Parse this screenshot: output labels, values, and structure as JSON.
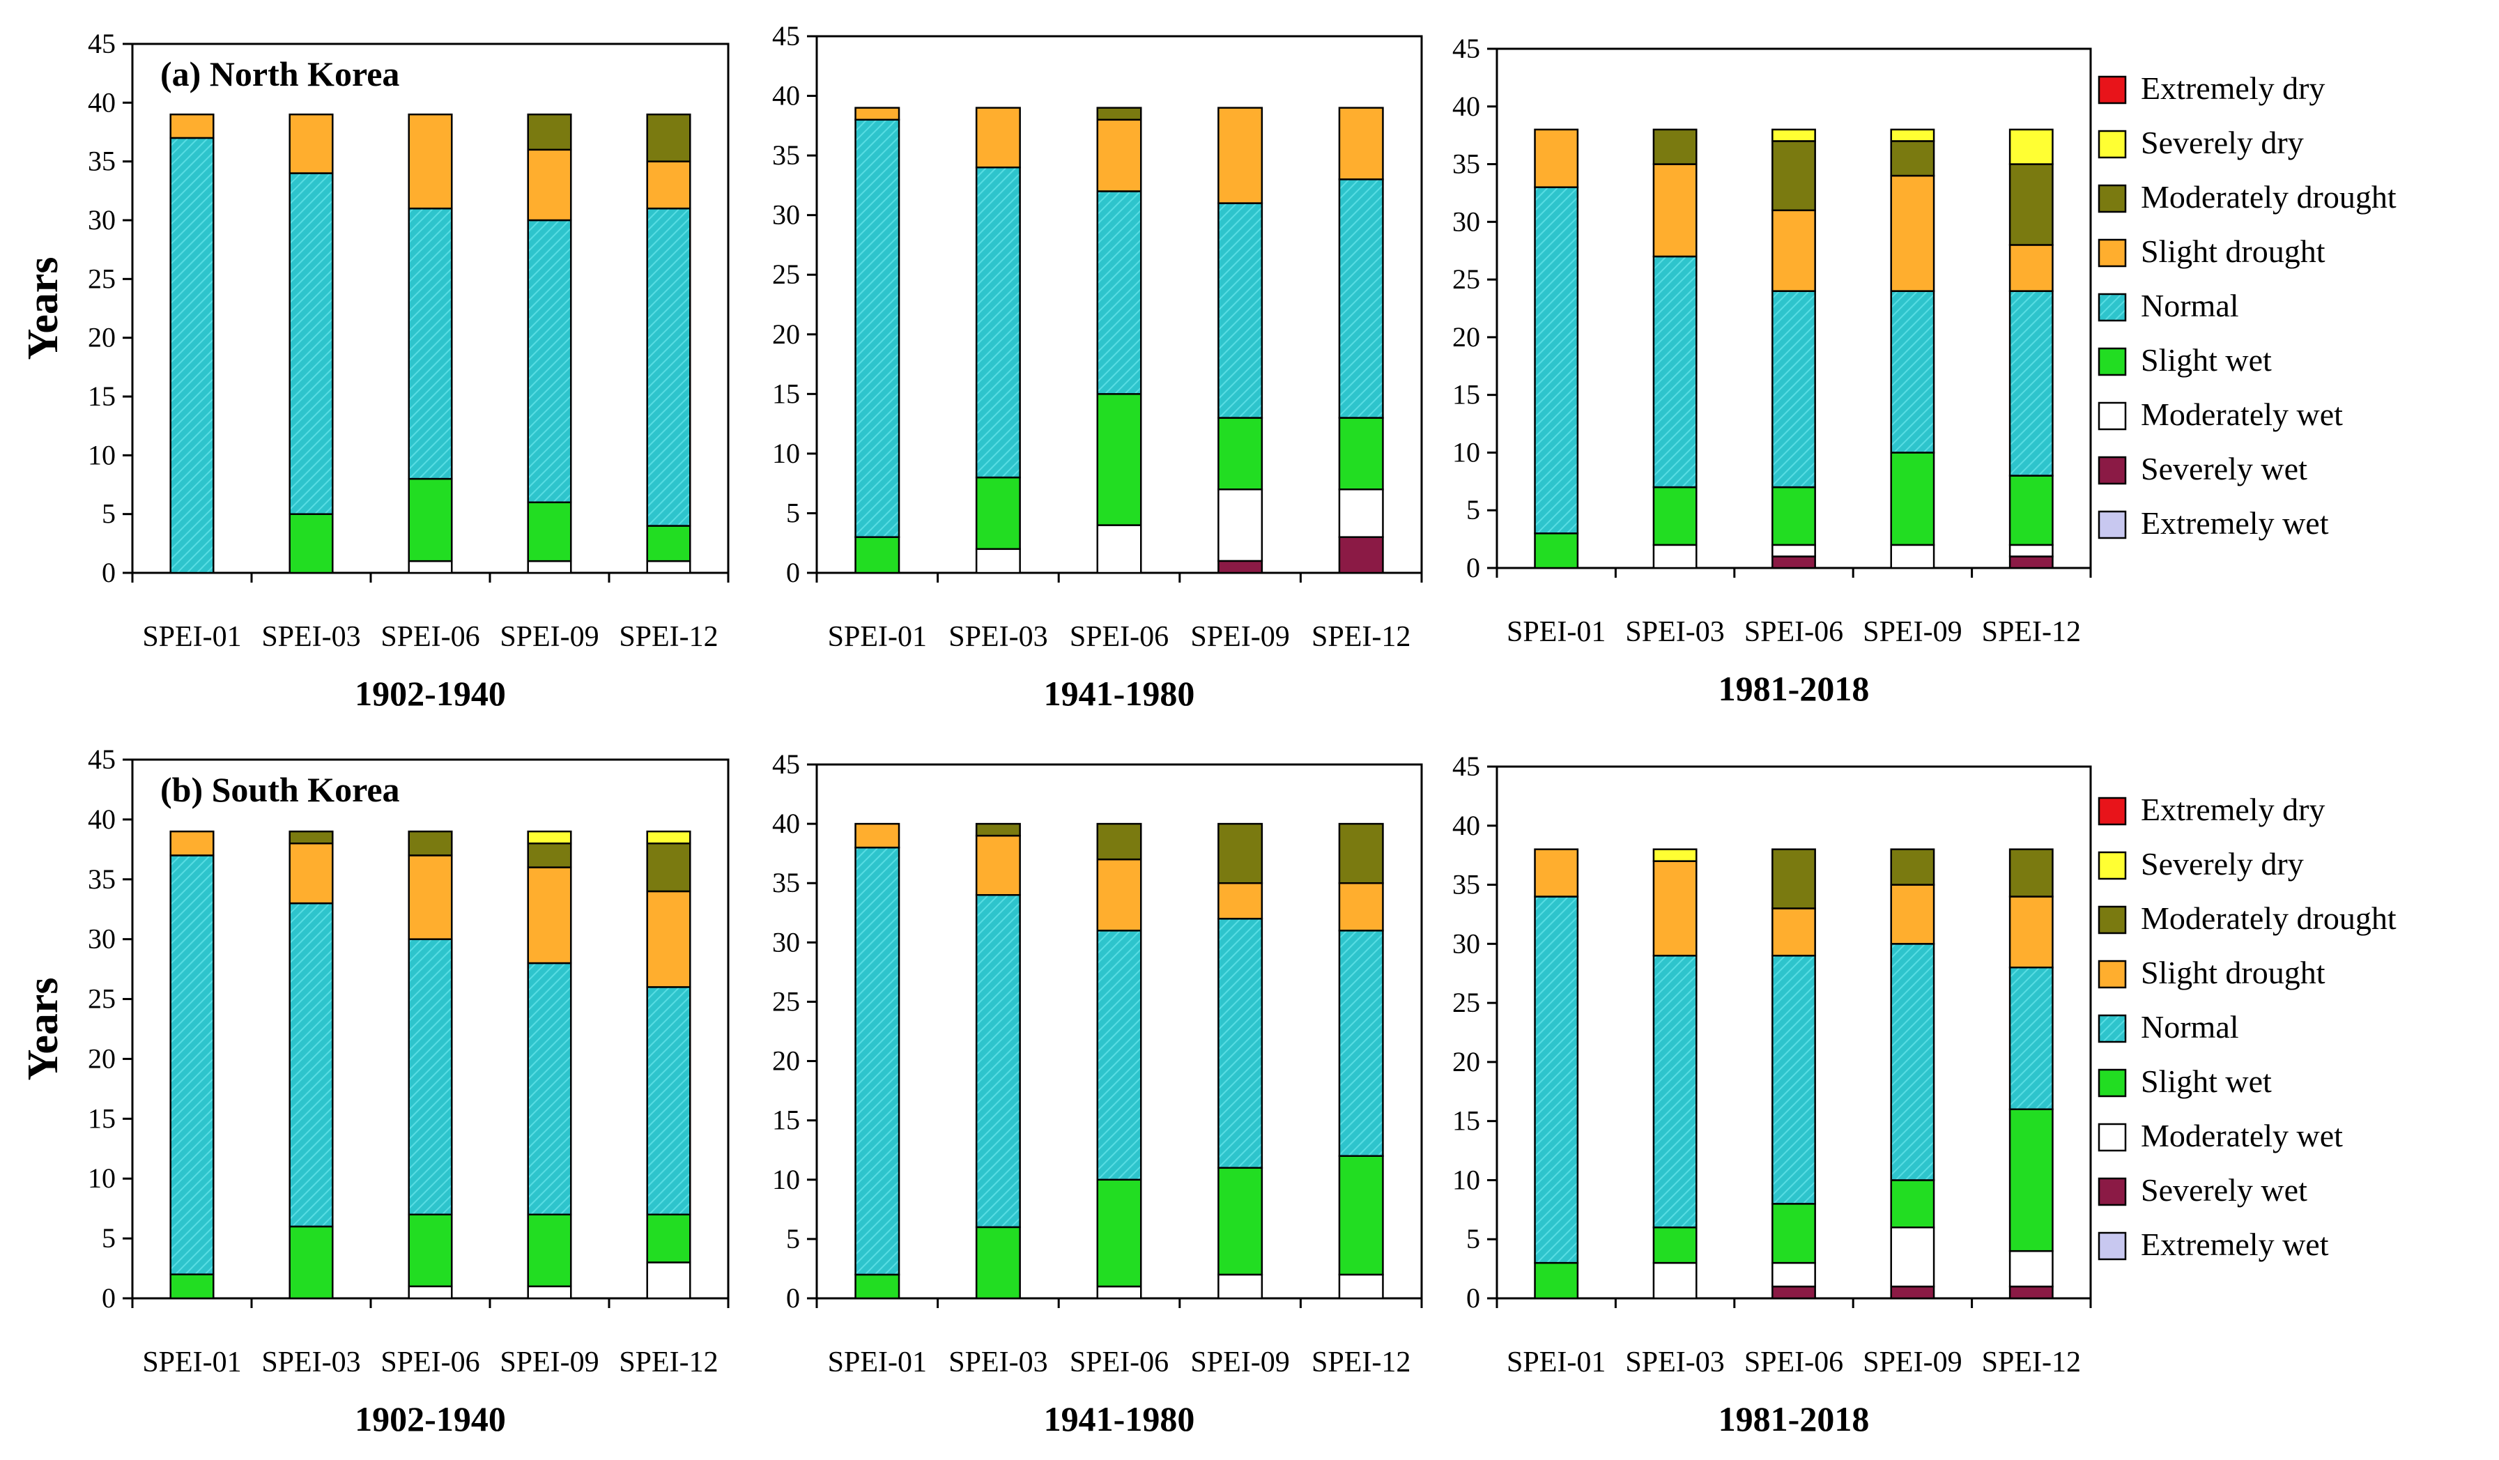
{
  "figure": {
    "ylabel": "Years",
    "categories": [
      "SPEI-01",
      "SPEI-03",
      "SPEI-06",
      "SPEI-09",
      "SPEI-12"
    ],
    "classes": [
      {
        "key": "xw",
        "name": "Extremely wet",
        "color": "#c8c8f0"
      },
      {
        "key": "sw",
        "name": "Severely wet",
        "color": "#8b1a45"
      },
      {
        "key": "mw",
        "name": "Moderately wet",
        "color": "#ffffff"
      },
      {
        "key": "slw",
        "name": "Slight wet",
        "color": "#22dd22"
      },
      {
        "key": "nor",
        "name": "Normal",
        "color": "#2ec4cc"
      },
      {
        "key": "sld",
        "name": "Slight drought",
        "color": "#ffae2e"
      },
      {
        "key": "md",
        "name": "Moderately drought",
        "color": "#7a7a10"
      },
      {
        "key": "sd",
        "name": "Severely dry",
        "color": "#ffff33"
      },
      {
        "key": "xd",
        "name": "Extremely dry",
        "color": "#e8141a"
      }
    ],
    "legend_order": [
      "Extremely dry",
      "Severely dry",
      "Moderately drought",
      "Slight drought",
      "Normal",
      "Slight wet",
      "Moderately wet",
      "Severely wet",
      "Extremely wet"
    ]
  },
  "chart_data": [
    {
      "type": "bar",
      "stacked": true,
      "panel_label": "(a) North Korea",
      "xlabel": "1902-1940",
      "ylabel": "Years",
      "ylim": [
        0,
        45
      ],
      "categories": [
        "SPEI-01",
        "SPEI-03",
        "SPEI-06",
        "SPEI-09",
        "SPEI-12"
      ],
      "series": [
        {
          "name": "Extremely wet",
          "values": [
            0,
            0,
            0,
            0,
            0
          ]
        },
        {
          "name": "Severely wet",
          "values": [
            0,
            0,
            0,
            0,
            0
          ]
        },
        {
          "name": "Moderately wet",
          "values": [
            0,
            0,
            1,
            1,
            1
          ]
        },
        {
          "name": "Slight wet",
          "values": [
            0,
            5,
            7,
            5,
            3
          ]
        },
        {
          "name": "Normal",
          "values": [
            37,
            29,
            23,
            24,
            27
          ]
        },
        {
          "name": "Slight drought",
          "values": [
            2,
            5,
            8,
            6,
            4
          ]
        },
        {
          "name": "Moderately drought",
          "values": [
            0,
            0,
            0,
            3,
            4
          ]
        },
        {
          "name": "Severely dry",
          "values": [
            0,
            0,
            0,
            0,
            0
          ]
        },
        {
          "name": "Extremely dry",
          "values": [
            0,
            0,
            0,
            0,
            0
          ]
        }
      ]
    },
    {
      "type": "bar",
      "stacked": true,
      "panel_label": "",
      "xlabel": "1941-1980",
      "ylabel": "",
      "ylim": [
        0,
        45
      ],
      "categories": [
        "SPEI-01",
        "SPEI-03",
        "SPEI-06",
        "SPEI-09",
        "SPEI-12"
      ],
      "series": [
        {
          "name": "Extremely wet",
          "values": [
            0,
            0,
            0,
            0,
            0
          ]
        },
        {
          "name": "Severely wet",
          "values": [
            0,
            0,
            0,
            1,
            3
          ]
        },
        {
          "name": "Moderately wet",
          "values": [
            0,
            2,
            4,
            6,
            4
          ]
        },
        {
          "name": "Slight wet",
          "values": [
            3,
            6,
            11,
            6,
            6
          ]
        },
        {
          "name": "Normal",
          "values": [
            35,
            26,
            17,
            18,
            20
          ]
        },
        {
          "name": "Slight drought",
          "values": [
            1,
            5,
            6,
            8,
            6
          ]
        },
        {
          "name": "Moderately drought",
          "values": [
            0,
            0,
            1,
            0,
            0
          ]
        },
        {
          "name": "Severely dry",
          "values": [
            0,
            0,
            0,
            0,
            0
          ]
        },
        {
          "name": "Extremely dry",
          "values": [
            0,
            0,
            0,
            0,
            0
          ]
        }
      ]
    },
    {
      "type": "bar",
      "stacked": true,
      "panel_label": "",
      "xlabel": "1981-2018",
      "ylabel": "",
      "ylim": [
        0,
        45
      ],
      "categories": [
        "SPEI-01",
        "SPEI-03",
        "SPEI-06",
        "SPEI-09",
        "SPEI-12"
      ],
      "series": [
        {
          "name": "Extremely wet",
          "values": [
            0,
            0,
            0,
            0,
            0
          ]
        },
        {
          "name": "Severely wet",
          "values": [
            0,
            0,
            1,
            0,
            1
          ]
        },
        {
          "name": "Moderately wet",
          "values": [
            0,
            2,
            1,
            2,
            1
          ]
        },
        {
          "name": "Slight wet",
          "values": [
            3,
            5,
            5,
            8,
            6
          ]
        },
        {
          "name": "Normal",
          "values": [
            30,
            20,
            17,
            14,
            16
          ]
        },
        {
          "name": "Slight drought",
          "values": [
            5,
            8,
            7,
            10,
            4
          ]
        },
        {
          "name": "Moderately drought",
          "values": [
            0,
            3,
            6,
            3,
            7
          ]
        },
        {
          "name": "Severely dry",
          "values": [
            0,
            0,
            1,
            1,
            3
          ]
        },
        {
          "name": "Extremely dry",
          "values": [
            0,
            0,
            0,
            0,
            0
          ]
        }
      ]
    },
    {
      "type": "bar",
      "stacked": true,
      "panel_label": "(b) South Korea",
      "xlabel": "1902-1940",
      "ylabel": "Years",
      "ylim": [
        0,
        45
      ],
      "categories": [
        "SPEI-01",
        "SPEI-03",
        "SPEI-06",
        "SPEI-09",
        "SPEI-12"
      ],
      "series": [
        {
          "name": "Extremely wet",
          "values": [
            0,
            0,
            0,
            0,
            0
          ]
        },
        {
          "name": "Severely wet",
          "values": [
            0,
            0,
            0,
            0,
            0
          ]
        },
        {
          "name": "Moderately wet",
          "values": [
            0,
            0,
            1,
            1,
            3
          ]
        },
        {
          "name": "Slight wet",
          "values": [
            2,
            6,
            6,
            6,
            4
          ]
        },
        {
          "name": "Normal",
          "values": [
            35,
            27,
            23,
            21,
            19
          ]
        },
        {
          "name": "Slight drought",
          "values": [
            2,
            5,
            7,
            8,
            8
          ]
        },
        {
          "name": "Moderately drought",
          "values": [
            0,
            1,
            2,
            2,
            4
          ]
        },
        {
          "name": "Severely dry",
          "values": [
            0,
            0,
            0,
            1,
            1
          ]
        },
        {
          "name": "Extremely dry",
          "values": [
            0,
            0,
            0,
            0,
            0
          ]
        }
      ]
    },
    {
      "type": "bar",
      "stacked": true,
      "panel_label": "",
      "xlabel": "1941-1980",
      "ylabel": "",
      "ylim": [
        0,
        45
      ],
      "categories": [
        "SPEI-01",
        "SPEI-03",
        "SPEI-06",
        "SPEI-09",
        "SPEI-12"
      ],
      "series": [
        {
          "name": "Extremely wet",
          "values": [
            0,
            0,
            0,
            0,
            0
          ]
        },
        {
          "name": "Severely wet",
          "values": [
            0,
            0,
            0,
            0,
            0
          ]
        },
        {
          "name": "Moderately wet",
          "values": [
            0,
            0,
            1,
            2,
            2
          ]
        },
        {
          "name": "Slight wet",
          "values": [
            2,
            6,
            9,
            9,
            10
          ]
        },
        {
          "name": "Normal",
          "values": [
            36,
            28,
            21,
            21,
            19
          ]
        },
        {
          "name": "Slight drought",
          "values": [
            2,
            5,
            6,
            3,
            4
          ]
        },
        {
          "name": "Moderately drought",
          "values": [
            0,
            1,
            3,
            5,
            5
          ]
        },
        {
          "name": "Severely dry",
          "values": [
            0,
            0,
            0,
            0,
            0
          ]
        },
        {
          "name": "Extremely dry",
          "values": [
            0,
            0,
            0,
            0,
            0
          ]
        }
      ]
    },
    {
      "type": "bar",
      "stacked": true,
      "panel_label": "",
      "xlabel": "1981-2018",
      "ylabel": "",
      "ylim": [
        0,
        45
      ],
      "categories": [
        "SPEI-01",
        "SPEI-03",
        "SPEI-06",
        "SPEI-09",
        "SPEI-12"
      ],
      "series": [
        {
          "name": "Extremely wet",
          "values": [
            0,
            0,
            0,
            0,
            0
          ]
        },
        {
          "name": "Severely wet",
          "values": [
            0,
            0,
            1,
            1,
            1
          ]
        },
        {
          "name": "Moderately wet",
          "values": [
            0,
            3,
            2,
            5,
            3
          ]
        },
        {
          "name": "Slight wet",
          "values": [
            3,
            3,
            5,
            4,
            12
          ]
        },
        {
          "name": "Normal",
          "values": [
            31,
            23,
            21,
            20,
            12
          ]
        },
        {
          "name": "Slight drought",
          "values": [
            4,
            8,
            4,
            5,
            6
          ]
        },
        {
          "name": "Moderately drought",
          "values": [
            0,
            0,
            5,
            3,
            4
          ]
        },
        {
          "name": "Severely dry",
          "values": [
            0,
            1,
            0,
            0,
            0
          ]
        },
        {
          "name": "Extremely dry",
          "values": [
            0,
            0,
            0,
            0,
            0
          ]
        }
      ]
    }
  ]
}
